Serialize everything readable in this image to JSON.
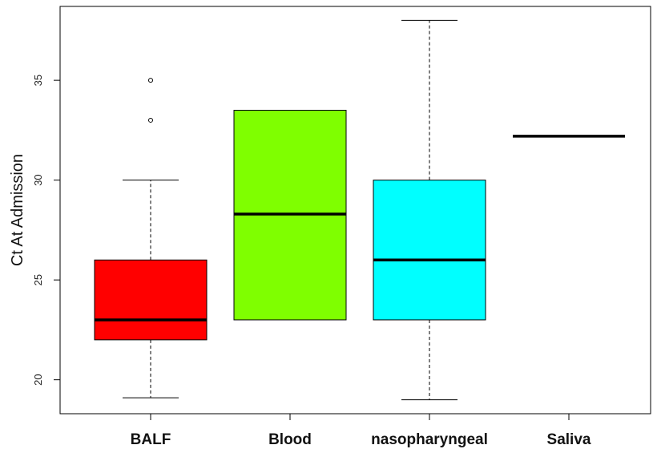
{
  "chart_data": {
    "type": "boxplot",
    "ylabel": "Ct At Admission",
    "xlabel": "",
    "title": "",
    "ylim": [
      18.3,
      38.7
    ],
    "yticks": [
      20,
      25,
      30,
      35
    ],
    "categories": [
      "BALF",
      "Blood",
      "nasopharyngeal",
      "Saliva"
    ],
    "colors": [
      "#ff0000",
      "#7fff00",
      "#00ffff",
      "#ffffff"
    ],
    "boxes": [
      {
        "name": "BALF",
        "whisker_low": 19.1,
        "q1": 22.0,
        "median": 23.0,
        "q3": 26.0,
        "whisker_high": 30.0,
        "outliers": [
          33,
          35
        ]
      },
      {
        "name": "Blood",
        "whisker_low": 23.0,
        "q1": 23.0,
        "median": 28.3,
        "q3": 33.5,
        "whisker_high": 33.5,
        "outliers": []
      },
      {
        "name": "nasopharyngeal",
        "whisker_low": 19.0,
        "q1": 23.0,
        "median": 26.0,
        "q3": 30.0,
        "whisker_high": 38.0,
        "outliers": []
      },
      {
        "name": "Saliva",
        "whisker_low": 32.2,
        "q1": 32.2,
        "median": 32.2,
        "q3": 32.2,
        "whisker_high": 32.2,
        "outliers": []
      }
    ],
    "grid": false,
    "legend": "none"
  }
}
